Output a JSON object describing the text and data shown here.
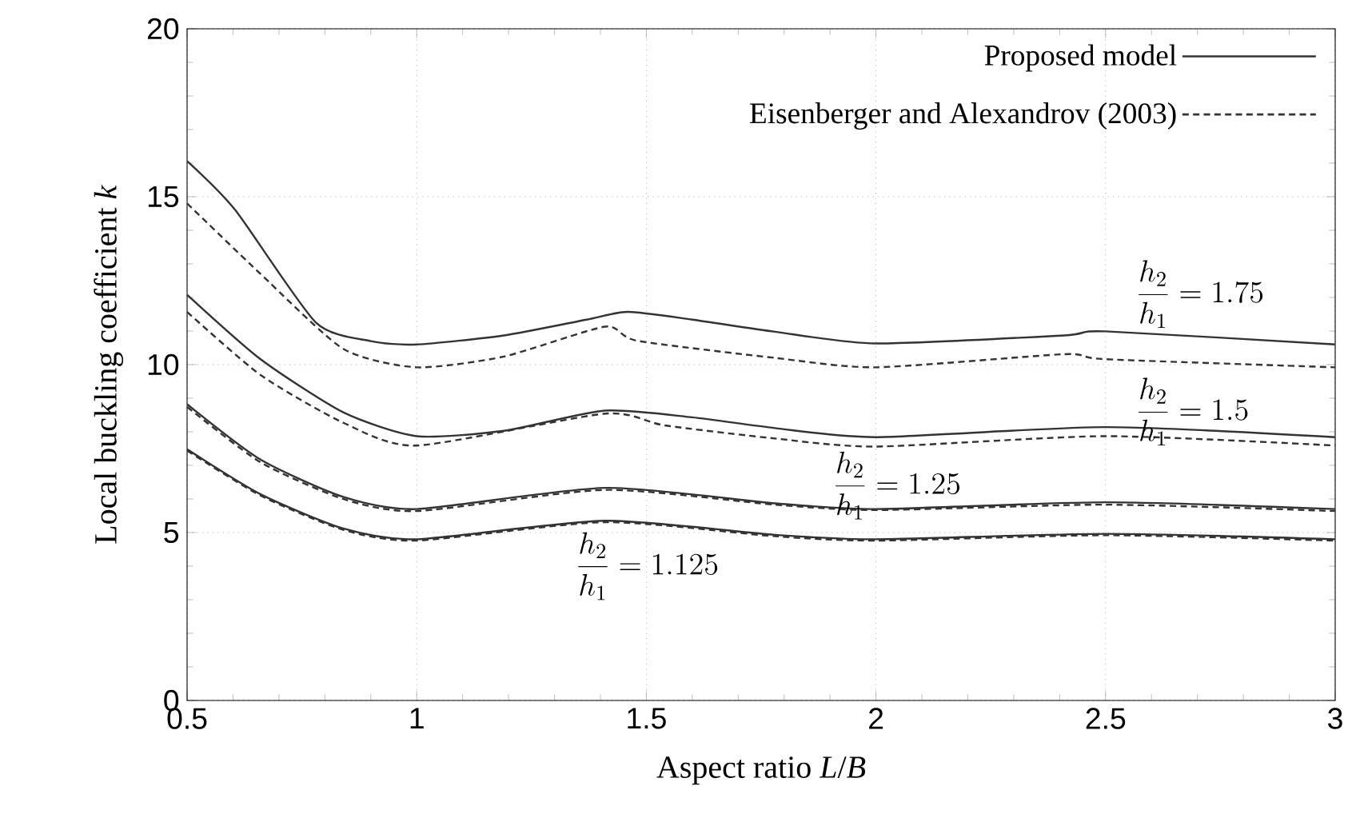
{
  "chart_data": {
    "type": "line",
    "xlabel": "Aspect ratio *L*/*B*",
    "ylabel": "Local buckling coefficient *k*",
    "xlim": [
      0.5,
      3
    ],
    "ylim": [
      0,
      20
    ],
    "xticks": [
      0.5,
      1,
      1.5,
      2,
      2.5,
      3
    ],
    "yticks": [
      0,
      5,
      10,
      15,
      20
    ],
    "grid": true,
    "legend": "top right",
    "marker": "none",
    "series": [
      {
        "name": "Proposed model",
        "color": "#333333",
        "line_style": "solid",
        "x": [
          0.5,
          0.605,
          0.78,
          0.9,
          1.0,
          1.19,
          1.37,
          1.46,
          1.6,
          1.78,
          2.0,
          2.41,
          2.5,
          3.0
        ],
        "values": [
          16.06,
          14.6,
          11.26,
          10.7,
          10.6,
          10.87,
          11.34,
          11.57,
          11.34,
          10.98,
          10.63,
          10.87,
          10.99,
          10.6
        ]
      },
      {
        "name": "Eisenberger and Alexandrov  (2003)",
        "color": "#333333",
        "line_style": "dashed",
        "x": [
          0.5,
          0.66,
          0.84,
          1.0,
          1.19,
          1.41,
          1.48,
          1.78,
          2.0,
          2.41,
          2.5,
          3.0
        ],
        "values": [
          14.8,
          12.7,
          10.47,
          9.92,
          10.24,
          11.13,
          10.71,
          10.2,
          9.92,
          10.31,
          10.16,
          9.92
        ]
      },
      {
        "color": "#333333",
        "line_style": "solid",
        "x": [
          0.5,
          0.66,
          0.84,
          1.0,
          1.19,
          1.41,
          1.6,
          1.78,
          2.0,
          2.5,
          3.0
        ],
        "values": [
          12.08,
          10.16,
          8.58,
          7.87,
          8.03,
          8.63,
          8.43,
          8.11,
          7.84,
          8.14,
          7.84
        ]
      },
      {
        "color": "#333333",
        "line_style": "dashed",
        "x": [
          0.5,
          0.66,
          0.84,
          1.0,
          1.41,
          1.54,
          1.78,
          2.0,
          2.5,
          3.0
        ],
        "values": [
          11.57,
          9.69,
          8.27,
          7.59,
          8.54,
          8.19,
          7.8,
          7.56,
          7.87,
          7.59
        ]
      },
      {
        "color": "#333333",
        "line_style": "solid",
        "x": [
          0.5,
          0.66,
          0.84,
          1.0,
          1.41,
          1.78,
          2.0,
          2.5,
          3.0
        ],
        "values": [
          8.82,
          7.17,
          6.06,
          5.7,
          6.33,
          5.87,
          5.7,
          5.9,
          5.7
        ]
      },
      {
        "color": "#333333",
        "line_style": "dashed",
        "x": [
          0.5,
          0.66,
          0.84,
          1.0,
          1.41,
          1.78,
          2.0,
          2.5,
          3.0
        ],
        "values": [
          8.74,
          7.09,
          6.0,
          5.64,
          6.27,
          5.83,
          5.67,
          5.83,
          5.64
        ]
      },
      {
        "color": "#333333",
        "line_style": "solid",
        "x": [
          0.5,
          0.66,
          0.84,
          1.0,
          1.41,
          1.78,
          2.0,
          2.5,
          3.0
        ],
        "values": [
          7.48,
          6.14,
          5.12,
          4.8,
          5.35,
          4.93,
          4.8,
          4.96,
          4.8
        ]
      },
      {
        "color": "#333333",
        "line_style": "dashed",
        "x": [
          0.5,
          0.66,
          0.84,
          1.0,
          1.41,
          1.78,
          2.0,
          2.5,
          3.0
        ],
        "values": [
          7.44,
          6.1,
          5.08,
          4.76,
          5.31,
          4.89,
          4.76,
          4.92,
          4.76
        ]
      }
    ],
    "annotations": [
      "\\frac{h_2}{h_1}=1.75",
      "\\frac{h_2}{h_1}=1.5",
      "\\frac{h_2}{h_1}=1.25",
      "\\frac{h_2}{h_1}=1.125"
    ]
  }
}
